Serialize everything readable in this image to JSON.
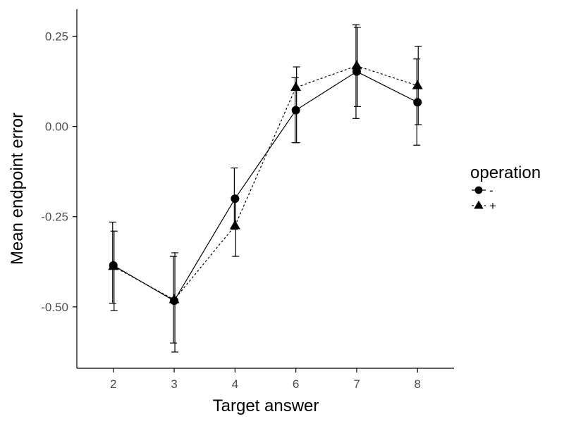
{
  "chart_data": {
    "type": "line",
    "xlabel": "Target answer",
    "ylabel": "Mean endpoint error",
    "categories": [
      "2",
      "3",
      "4",
      "6",
      "7",
      "8"
    ],
    "ylim": [
      -0.67,
      0.325
    ],
    "yticks": [
      0.25,
      0.0,
      -0.25,
      -0.5
    ],
    "ytick_labels": [
      "0.25",
      "0.00",
      "-0.25",
      "-0.50"
    ],
    "grid": false,
    "legend": {
      "title": "operation",
      "placement": "right"
    },
    "series": [
      {
        "name": "-",
        "marker": "circle",
        "line_style": "solid",
        "values": [
          -0.385,
          -0.483,
          -0.2,
          0.045,
          0.152,
          0.067
        ],
        "error_low": [
          -0.49,
          -0.6,
          -0.285,
          -0.045,
          0.022,
          -0.052
        ],
        "error_high": [
          -0.265,
          -0.36,
          -0.115,
          0.135,
          0.282,
          0.187
        ]
      },
      {
        "name": "+",
        "marker": "triangle",
        "line_style": "dotted",
        "values": [
          -0.388,
          -0.48,
          -0.275,
          0.108,
          0.168,
          0.113
        ],
        "error_low": [
          -0.51,
          -0.625,
          -0.36,
          -0.045,
          0.055,
          0.005
        ],
        "error_high": [
          -0.29,
          -0.35,
          -0.2,
          0.165,
          0.275,
          0.222
        ]
      }
    ]
  }
}
